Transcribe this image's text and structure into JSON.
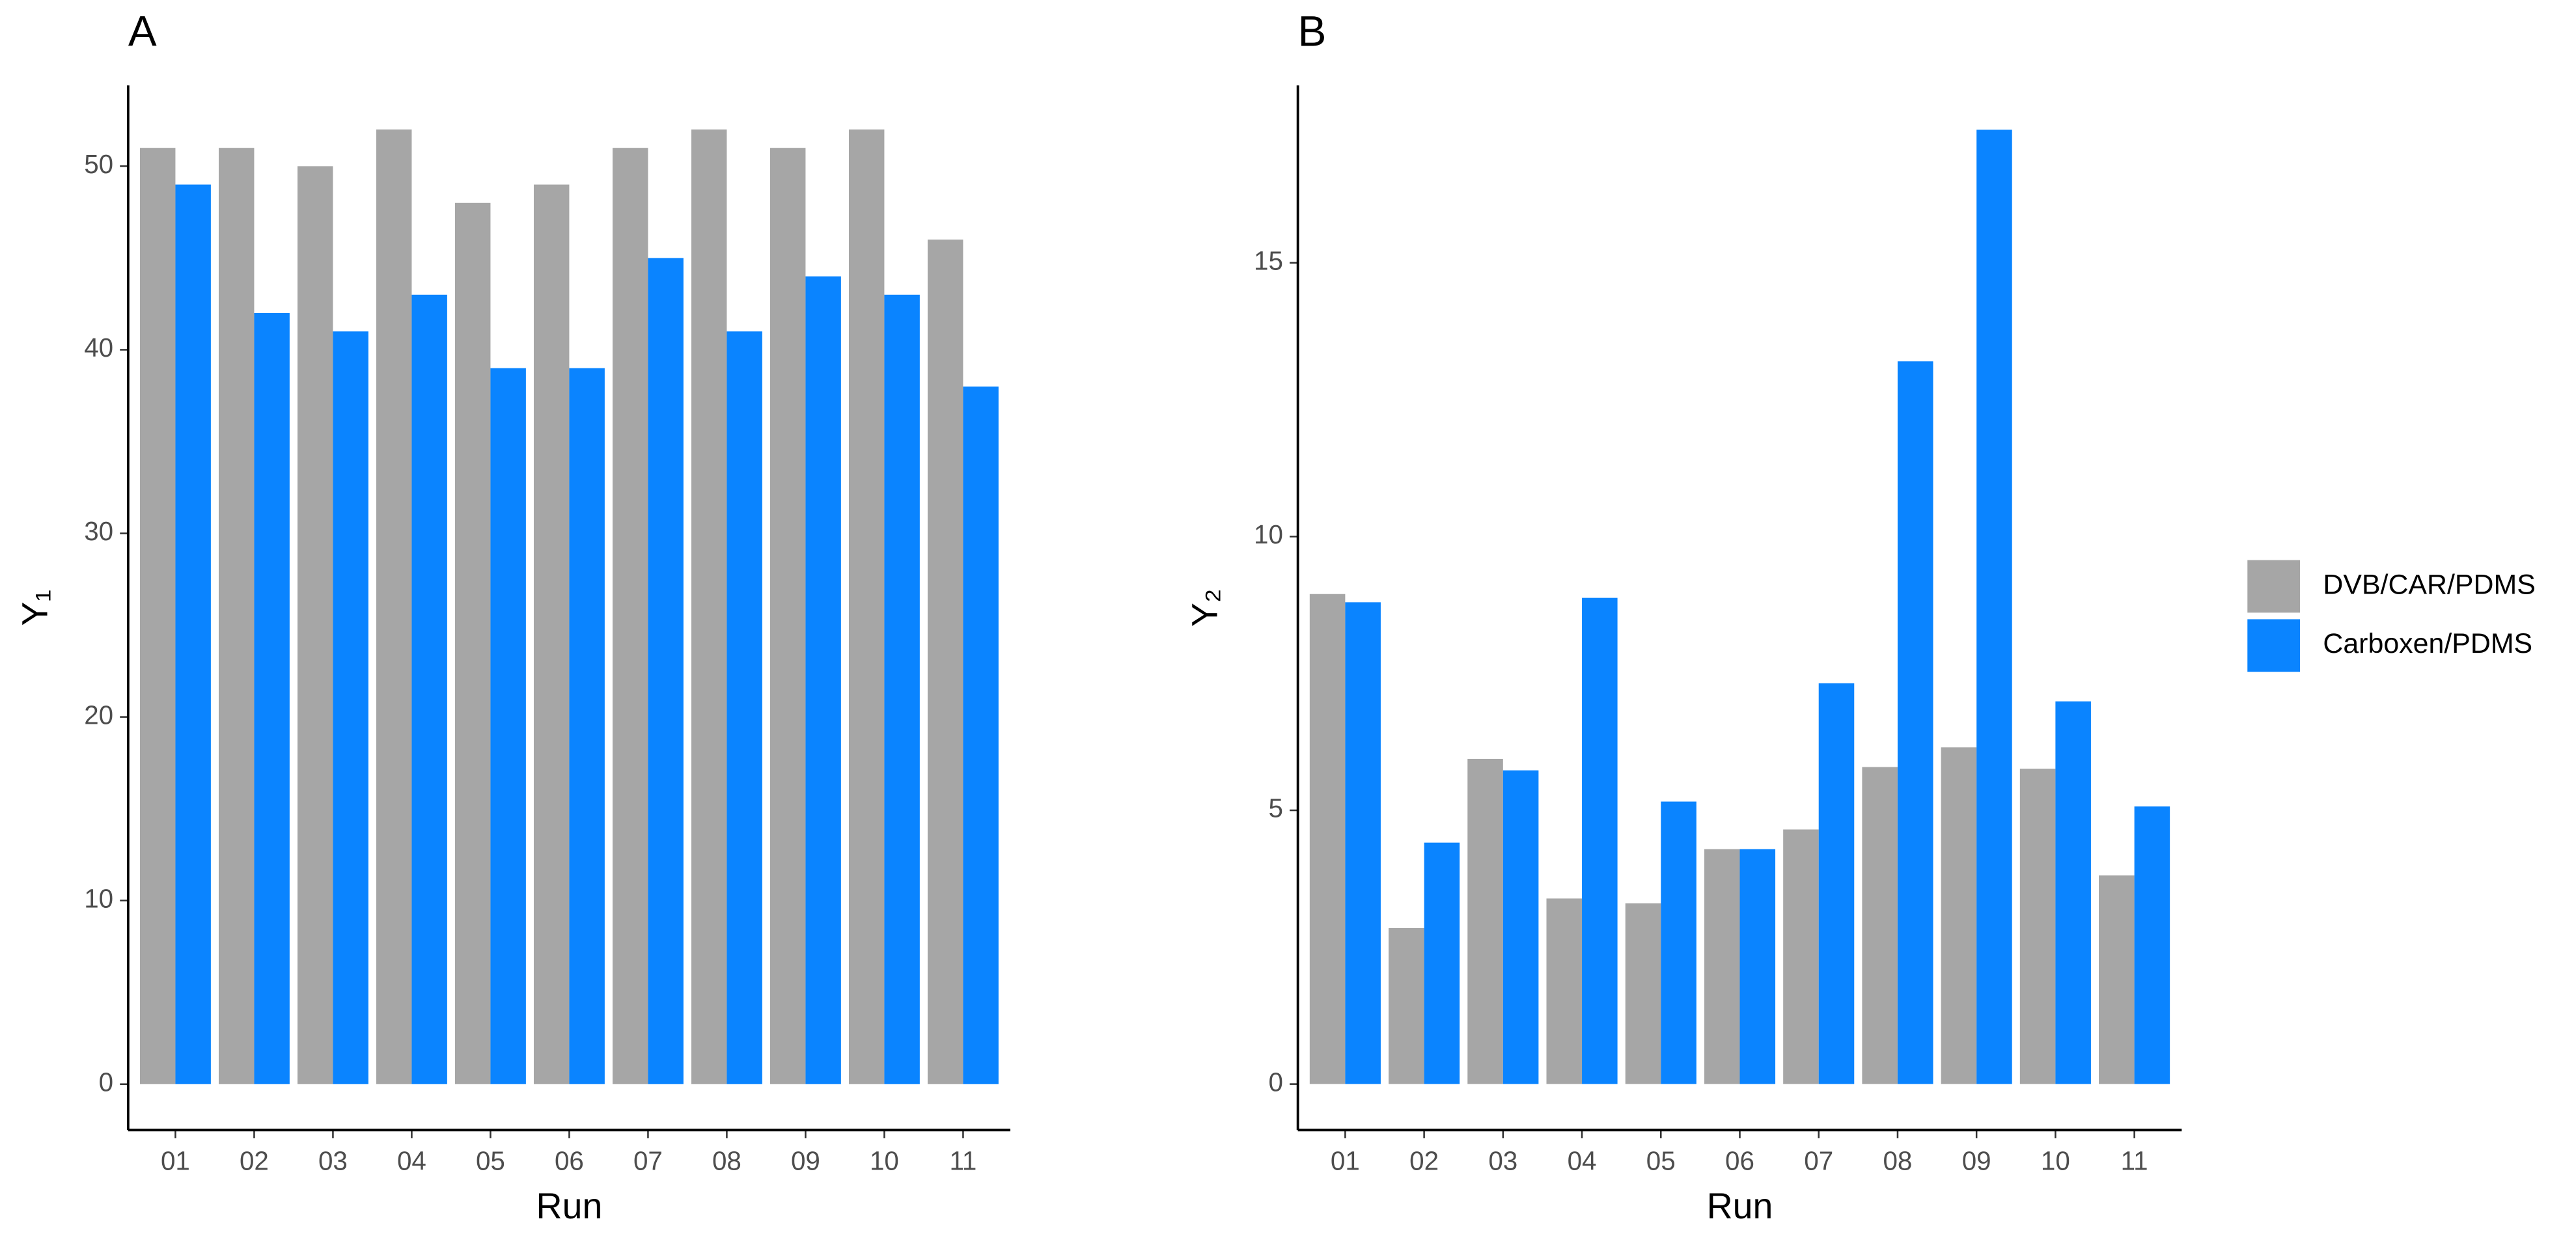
{
  "chart_data": [
    {
      "type": "bar",
      "title": "A",
      "x_label": "Run",
      "y_label": "Y₁",
      "categories": [
        "01",
        "02",
        "03",
        "04",
        "05",
        "06",
        "07",
        "08",
        "09",
        "10",
        "11"
      ],
      "series": [
        {
          "color": "#a6a6a6",
          "values": [
            51,
            51,
            50,
            52,
            48,
            49,
            51,
            52,
            51,
            52,
            46
          ]
        },
        {
          "color": "#0a84ff",
          "values": [
            49,
            42,
            41,
            43,
            39,
            39,
            45,
            41,
            44,
            43,
            38
          ]
        }
      ],
      "ylim": [
        -2.5,
        54.4
      ],
      "yticks": [
        0,
        10,
        20,
        30,
        40,
        50
      ]
    },
    {
      "type": "bar",
      "title": "B",
      "x_label": "Run",
      "y_label": "Y₂",
      "categories": [
        "01",
        "02",
        "03",
        "04",
        "05",
        "06",
        "07",
        "08",
        "09",
        "10",
        "11"
      ],
      "series": [
        {
          "name": "DVB/CAR/PDMS",
          "color": "#a6a6a6",
          "values": [
            8.95,
            2.85,
            5.94,
            3.39,
            3.3,
            4.29,
            4.65,
            5.79,
            6.15,
            5.76,
            3.81
          ]
        },
        {
          "name": "Carboxen/PDMS",
          "color": "#0a84ff",
          "values": [
            8.8,
            4.41,
            5.73,
            8.88,
            5.16,
            4.29,
            7.32,
            13.2,
            17.43,
            6.99,
            5.07
          ]
        }
      ],
      "ylim": [
        -0.84,
        18.24
      ],
      "yticks": [
        0,
        5,
        10,
        15
      ]
    }
  ]
}
